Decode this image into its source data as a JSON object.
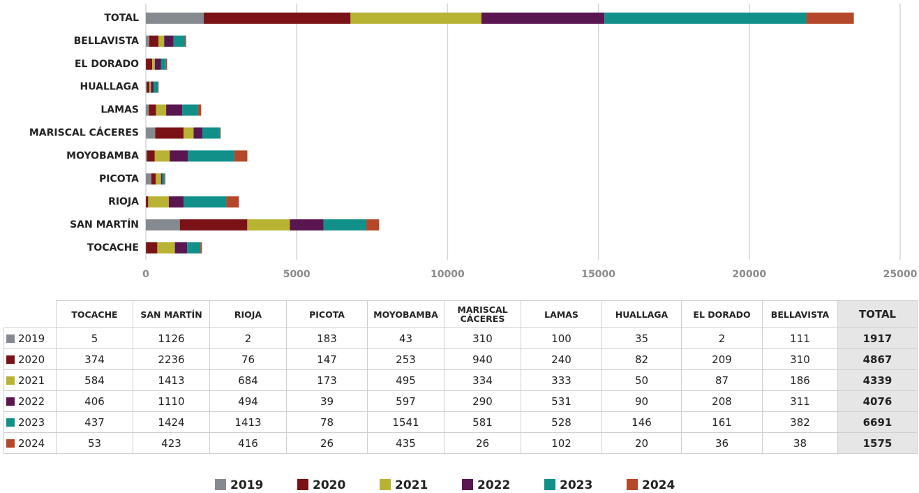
{
  "chart_data": {
    "type": "stacked_barh",
    "categories": [
      "TOCACHE",
      "SAN MARTÍN",
      "RIOJA",
      "PICOTA",
      "MOYOBAMBA",
      "MARISCAL CÁCERES",
      "LAMAS",
      "HUALLAGA",
      "EL DORADO",
      "BELLAVISTA",
      "TOTAL"
    ],
    "series": [
      {
        "name": "2019",
        "color": "#858a90",
        "values": [
          5,
          1126,
          2,
          183,
          43,
          310,
          100,
          35,
          2,
          111,
          1917
        ]
      },
      {
        "name": "2020",
        "color": "#7b1216",
        "values": [
          374,
          2236,
          76,
          147,
          253,
          940,
          240,
          82,
          209,
          310,
          4867
        ]
      },
      {
        "name": "2021",
        "color": "#b8b333",
        "values": [
          584,
          1413,
          684,
          173,
          495,
          334,
          333,
          50,
          87,
          186,
          4339
        ]
      },
      {
        "name": "2022",
        "color": "#5a1650",
        "values": [
          406,
          1110,
          494,
          39,
          597,
          290,
          531,
          90,
          208,
          311,
          4076
        ]
      },
      {
        "name": "2023",
        "color": "#11908a",
        "values": [
          437,
          1424,
          1413,
          78,
          1541,
          581,
          528,
          146,
          161,
          382,
          6691
        ]
      },
      {
        "name": "2024",
        "color": "#b5482a",
        "values": [
          53,
          423,
          416,
          26,
          435,
          26,
          102,
          20,
          36,
          38,
          1575
        ]
      }
    ],
    "xlim": [
      0,
      25000
    ],
    "xticks": [
      0,
      5000,
      10000,
      15000,
      20000,
      25000
    ],
    "grid": true,
    "legend": "bottom",
    "data_table": true
  }
}
